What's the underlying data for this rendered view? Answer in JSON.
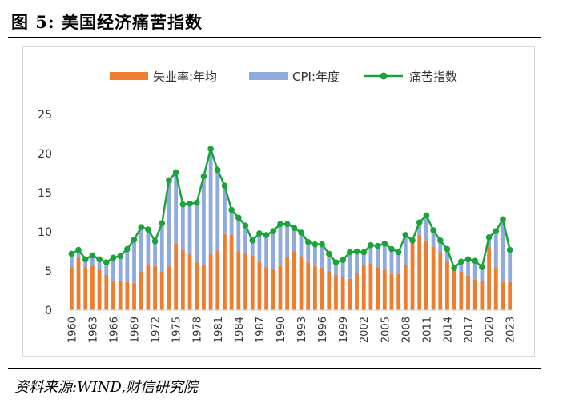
{
  "figure": {
    "title": "图 5:  美国经济痛苦指数",
    "source": "资料来源:WIND,财信研究院"
  },
  "colors": {
    "unemployment": "#ED7D31",
    "cpi": "#8FAADC",
    "misery": "#1AA33A",
    "axis": "#d9d9d9",
    "text": "#333333"
  },
  "chart_data": {
    "type": "bar",
    "stacked": true,
    "xlabel": "",
    "ylabel": "",
    "ylim": [
      0,
      25
    ],
    "yticks": [
      0,
      5,
      10,
      15,
      20,
      25
    ],
    "grid": false,
    "legend_position": "top-center",
    "x_tick_labels": [
      "1960",
      "1963",
      "1966",
      "1969",
      "1972",
      "1975",
      "1978",
      "1981",
      "1984",
      "1987",
      "1990",
      "1993",
      "1996",
      "1999",
      "2002",
      "2005",
      "2008",
      "2011",
      "2014",
      "2017",
      "2020",
      "2023"
    ],
    "x": [
      1960,
      1961,
      1962,
      1963,
      1964,
      1965,
      1966,
      1967,
      1968,
      1969,
      1970,
      1971,
      1972,
      1973,
      1974,
      1975,
      1976,
      1977,
      1978,
      1979,
      1980,
      1981,
      1982,
      1983,
      1984,
      1985,
      1986,
      1987,
      1988,
      1989,
      1990,
      1991,
      1992,
      1993,
      1994,
      1995,
      1996,
      1997,
      1998,
      1999,
      2000,
      2001,
      2002,
      2003,
      2004,
      2005,
      2006,
      2007,
      2008,
      2009,
      2010,
      2011,
      2012,
      2013,
      2014,
      2015,
      2016,
      2017,
      2018,
      2019,
      2020,
      2021,
      2022,
      2023
    ],
    "series": [
      {
        "name": "失业率:年均",
        "kind": "bar",
        "values": [
          5.5,
          6.7,
          5.5,
          5.7,
          5.2,
          4.5,
          3.8,
          3.8,
          3.6,
          3.5,
          4.9,
          5.9,
          5.6,
          4.9,
          5.6,
          8.5,
          7.7,
          7.1,
          6.1,
          5.8,
          7.1,
          7.6,
          9.7,
          9.6,
          7.5,
          7.2,
          7.0,
          6.2,
          5.5,
          5.3,
          5.6,
          6.8,
          7.5,
          6.9,
          6.1,
          5.6,
          5.4,
          4.9,
          4.5,
          4.2,
          4.0,
          4.7,
          5.8,
          6.0,
          5.5,
          5.1,
          4.6,
          4.6,
          5.8,
          9.3,
          9.6,
          8.9,
          8.1,
          7.4,
          6.2,
          5.3,
          4.9,
          4.4,
          3.9,
          3.7,
          8.1,
          5.4,
          3.6,
          3.6
        ]
      },
      {
        "name": "CPI:年度",
        "kind": "bar",
        "values": [
          1.7,
          1.0,
          1.0,
          1.3,
          1.3,
          1.6,
          2.9,
          3.1,
          4.2,
          5.5,
          5.7,
          4.4,
          3.2,
          6.2,
          11.0,
          9.1,
          5.8,
          6.5,
          7.6,
          11.3,
          13.5,
          10.3,
          6.2,
          3.2,
          4.3,
          3.6,
          1.9,
          3.6,
          4.1,
          4.8,
          5.4,
          4.2,
          3.0,
          3.0,
          2.6,
          2.8,
          3.0,
          2.3,
          1.6,
          2.2,
          3.4,
          2.8,
          1.6,
          2.3,
          2.7,
          3.4,
          3.2,
          2.8,
          3.8,
          -0.4,
          1.6,
          3.2,
          2.1,
          1.5,
          1.6,
          0.1,
          1.3,
          2.1,
          2.4,
          1.8,
          1.2,
          4.7,
          8.0,
          4.1
        ]
      },
      {
        "name": "痛苦指数",
        "kind": "line",
        "values": [
          7.2,
          7.7,
          6.5,
          7.0,
          6.5,
          6.1,
          6.7,
          6.9,
          7.8,
          9.0,
          10.6,
          10.3,
          8.8,
          11.1,
          16.6,
          17.6,
          13.5,
          13.6,
          13.7,
          17.1,
          20.6,
          17.9,
          15.9,
          12.8,
          11.8,
          10.8,
          8.9,
          9.8,
          9.6,
          10.1,
          11.0,
          11.0,
          10.5,
          9.9,
          8.7,
          8.4,
          8.4,
          7.2,
          6.1,
          6.4,
          7.4,
          7.5,
          7.4,
          8.3,
          8.2,
          8.5,
          7.8,
          7.4,
          9.6,
          8.9,
          11.2,
          12.1,
          10.2,
          8.9,
          7.8,
          5.4,
          6.2,
          6.5,
          6.3,
          5.5,
          9.3,
          10.1,
          11.6,
          7.7
        ]
      }
    ]
  }
}
